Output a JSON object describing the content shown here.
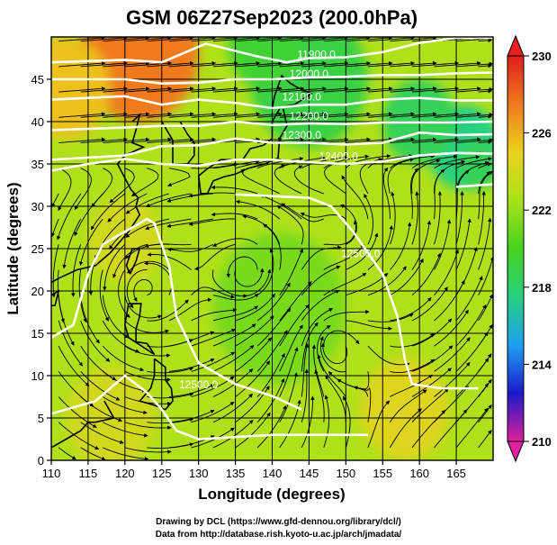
{
  "chart_data": {
    "type": "heatmap",
    "title": "GSM 06Z27Sep2023 (200.0hPa)",
    "xlabel": "Longitude (degrees)",
    "ylabel": "Latitude  (degrees)",
    "xlim": [
      110,
      170
    ],
    "ylim": [
      0,
      50
    ],
    "x_ticks": [
      110,
      115,
      120,
      125,
      130,
      135,
      140,
      145,
      150,
      155,
      160,
      165
    ],
    "y_ticks": [
      0,
      5,
      10,
      15,
      20,
      25,
      30,
      35,
      40,
      45
    ],
    "colorbar": {
      "min": 210,
      "max": 230,
      "ticks": [
        210,
        214,
        218,
        222,
        226,
        230
      ],
      "colors": [
        "#e0209a",
        "#1a1ac8",
        "#1ea0f0",
        "#28d080",
        "#46d21e",
        "#a8e21a",
        "#ecd21e",
        "#f07a1e",
        "#e01e1e"
      ]
    },
    "field_blobs": [
      {
        "lon": 122,
        "lat": 48,
        "value": 227.5,
        "radius": 8
      },
      {
        "lon": 112,
        "lat": 44,
        "value": 225.5,
        "radius": 6
      },
      {
        "lon": 145,
        "lat": 45,
        "value": 219.0,
        "radius": 8
      },
      {
        "lon": 139,
        "lat": 49,
        "value": 219.5,
        "radius": 5
      },
      {
        "lon": 166,
        "lat": 37,
        "value": 217.5,
        "radius": 5
      },
      {
        "lon": 160,
        "lat": 40,
        "value": 218.5,
        "radius": 5
      },
      {
        "lon": 168,
        "lat": 35,
        "value": 218.5,
        "radius": 3
      },
      {
        "lon": 141,
        "lat": 18,
        "value": 221.3,
        "radius": 9
      },
      {
        "lon": 158,
        "lat": 6,
        "value": 224.5,
        "radius": 6
      },
      {
        "lon": 118,
        "lat": 5,
        "value": 224.0,
        "radius": 6
      },
      {
        "lon": 120,
        "lat": 26,
        "value": 224.0,
        "radius": 5
      }
    ],
    "contour_labels": [
      "11900.0",
      "12000.0",
      "12100.0",
      "12200.0",
      "12300.0",
      "12400.0",
      "12500.0",
      "12500.0"
    ],
    "contours": [
      {
        "label": "11900.0",
        "points": [
          [
            110,
            47
          ],
          [
            120,
            47.3
          ],
          [
            125,
            47
          ],
          [
            131,
            49.2
          ],
          [
            138,
            47.7
          ],
          [
            142,
            47
          ],
          [
            145,
            47.5
          ],
          [
            150,
            47.6
          ],
          [
            155,
            48.2
          ],
          [
            160,
            49.3
          ],
          [
            165,
            49.9
          ],
          [
            170,
            49.9
          ]
        ]
      },
      {
        "label": "12000.0",
        "points": [
          [
            110,
            45
          ],
          [
            120,
            45
          ],
          [
            125,
            44.5
          ],
          [
            130,
            44.6
          ],
          [
            135,
            45
          ],
          [
            140,
            45
          ],
          [
            145,
            45.2
          ],
          [
            150,
            45.3
          ],
          [
            155,
            45.5
          ],
          [
            160,
            45.5
          ],
          [
            165,
            45.7
          ],
          [
            170,
            45.8
          ]
        ]
      },
      {
        "label": "12100.0",
        "points": [
          [
            110,
            42.6
          ],
          [
            120,
            43
          ],
          [
            125,
            42
          ],
          [
            130,
            42.6
          ],
          [
            135,
            42.2
          ],
          [
            140,
            41.6
          ],
          [
            145,
            42
          ],
          [
            150,
            42
          ],
          [
            155,
            42.6
          ],
          [
            160,
            42.8
          ],
          [
            165,
            42.5
          ],
          [
            170,
            42.5
          ]
        ]
      },
      {
        "label": "12200.0",
        "points": [
          [
            110,
            39
          ],
          [
            120,
            39.3
          ],
          [
            125,
            39.5
          ],
          [
            130,
            39.5
          ],
          [
            135,
            40
          ],
          [
            140,
            39.6
          ],
          [
            145,
            39.8
          ],
          [
            150,
            39.7
          ],
          [
            155,
            39.9
          ],
          [
            160,
            39.9
          ],
          [
            165,
            39.9
          ],
          [
            170,
            40
          ]
        ]
      },
      {
        "label": "12300.0",
        "points": [
          [
            110,
            35.5
          ],
          [
            120,
            36
          ],
          [
            125,
            37.1
          ],
          [
            130,
            37.2
          ],
          [
            135,
            38
          ],
          [
            140,
            37.5
          ],
          [
            145,
            37.5
          ],
          [
            150,
            37.3
          ],
          [
            155,
            37.5
          ],
          [
            160,
            38.7
          ],
          [
            165,
            38.4
          ],
          [
            170,
            38.5
          ]
        ]
      },
      {
        "label": "12400.0",
        "points": [
          [
            110,
            34.2
          ],
          [
            115,
            35
          ],
          [
            120,
            35.6
          ],
          [
            125,
            35
          ],
          [
            130,
            34.8
          ],
          [
            135,
            35.5
          ],
          [
            140,
            35.5
          ],
          [
            145,
            35.2
          ],
          [
            150,
            35
          ],
          [
            155,
            35.3
          ],
          [
            160,
            36
          ],
          [
            165,
            36.3
          ],
          [
            170,
            36.2
          ]
        ]
      },
      {
        "label": "12500.0",
        "points": [
          [
            135,
            31.4
          ],
          [
            140,
            31.2
          ],
          [
            145,
            31
          ],
          [
            148,
            30
          ],
          [
            151,
            27
          ],
          [
            155,
            22
          ],
          [
            157,
            17
          ],
          [
            158,
            12
          ],
          [
            159,
            9
          ],
          [
            163,
            8.5
          ],
          [
            168,
            8.5
          ]
        ]
      },
      {
        "label": "12500.0",
        "points": [
          [
            110,
            14.5
          ],
          [
            113,
            16
          ],
          [
            115,
            22
          ],
          [
            117,
            25.5
          ],
          [
            120,
            27
          ],
          [
            123,
            28.5
          ],
          [
            124,
            28
          ],
          [
            126,
            23
          ],
          [
            127,
            17
          ],
          [
            130,
            11.5
          ],
          [
            135,
            9
          ],
          [
            140,
            7.6
          ],
          [
            144,
            6
          ]
        ]
      },
      {
        "label": "",
        "points": [
          [
            110,
            5.5
          ],
          [
            116,
            7
          ],
          [
            120,
            10
          ],
          [
            123,
            8
          ],
          [
            125,
            6
          ],
          [
            127,
            3.5
          ],
          [
            130,
            2.5
          ],
          [
            140,
            3
          ],
          [
            150,
            3
          ],
          [
            153,
            3
          ]
        ]
      },
      {
        "label": "",
        "points": [
          [
            165,
            32.3
          ],
          [
            170,
            32.6
          ]
        ]
      }
    ]
  },
  "credits": {
    "line1": "Drawing by DCL (https://www.gfd-dennou.org/library/dcl/)",
    "line2": "Data from http://database.rish.kyoto-u.ac.jp/arch/jmadata/"
  }
}
